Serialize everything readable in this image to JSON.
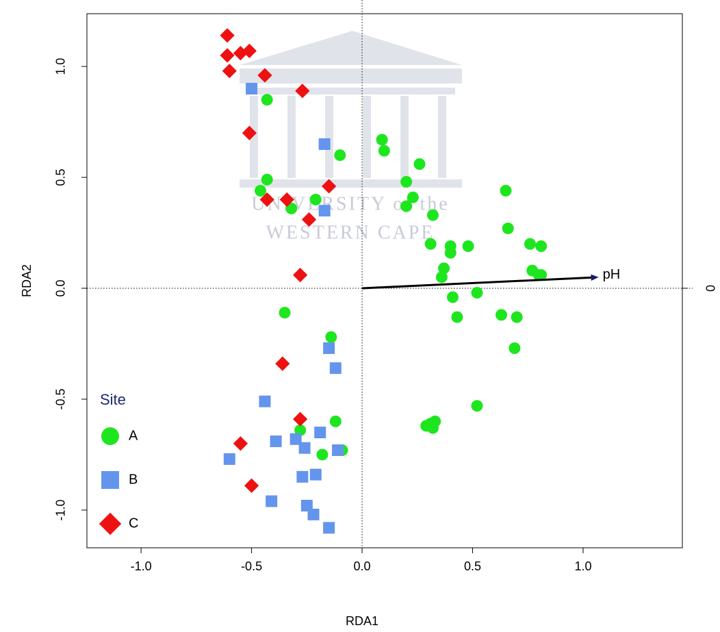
{
  "chart_data": {
    "type": "scatter",
    "x_label": "RDA1",
    "y_label": "RDA2",
    "xlim": [
      -1.245,
      1.449
    ],
    "ylim": [
      -1.17,
      1.238
    ],
    "xticks": [
      {
        "value": -1,
        "label": "-1.0"
      },
      -0.5,
      {
        "value": 0,
        "label": "0.0"
      },
      0.5,
      {
        "value": 1,
        "label": "1.0"
      }
    ],
    "yticks": [
      {
        "value": -1,
        "label": "-1.0"
      },
      -0.5,
      {
        "value": 0,
        "label": "0.0"
      },
      0.5,
      {
        "value": 1,
        "label": "1.0"
      }
    ],
    "y2lim": [
      -1.17,
      1.238
    ],
    "y2ticks": [
      0
    ],
    "zero_lines": true,
    "legend_title": "Site",
    "legend_position": "bottom-left",
    "watermark": [
      "UNIVERSITY of the",
      "WESTERN CAPE"
    ],
    "arrows": [
      {
        "label": "pH",
        "x": 1.07,
        "y": 0.05
      }
    ],
    "series": [
      {
        "name": "A",
        "color": "#1ee61e",
        "marker": "circle",
        "x": [
          -0.43,
          -0.1,
          0.09,
          0.1,
          0.26,
          0.2,
          0.23,
          0.2,
          0.32,
          -0.43,
          -0.46,
          -0.21,
          -0.32,
          0.65,
          0.66,
          0.31,
          0.4,
          0.4,
          0.48,
          0.76,
          0.81,
          0.37,
          0.36,
          0.77,
          0.8,
          0.81,
          0.52,
          0.41,
          0.43,
          0.63,
          0.7,
          0.69,
          -0.35,
          -0.14,
          0.52,
          0.33,
          0.31,
          0.29,
          0.32,
          -0.12,
          -0.28,
          -0.09,
          -0.18
        ],
        "y": [
          0.85,
          0.6,
          0.67,
          0.62,
          0.56,
          0.48,
          0.41,
          0.37,
          0.33,
          0.49,
          0.44,
          0.4,
          0.36,
          0.44,
          0.27,
          0.2,
          0.19,
          0.16,
          0.19,
          0.2,
          0.19,
          0.09,
          0.05,
          0.08,
          0.06,
          0.06,
          -0.02,
          -0.04,
          -0.13,
          -0.12,
          -0.13,
          -0.27,
          -0.11,
          -0.22,
          -0.53,
          -0.6,
          -0.61,
          -0.62,
          -0.63,
          -0.6,
          -0.64,
          -0.73,
          -0.75
        ]
      },
      {
        "name": "B",
        "color": "#6495ed",
        "marker": "square",
        "x": [
          -0.5,
          -0.17,
          -0.17,
          -0.15,
          -0.12,
          -0.44,
          -0.39,
          -0.3,
          -0.26,
          -0.19,
          -0.11,
          -0.6,
          -0.27,
          -0.21,
          -0.41,
          -0.25,
          -0.22,
          -0.15
        ],
        "y": [
          0.9,
          0.65,
          0.35,
          -0.27,
          -0.36,
          -0.51,
          -0.69,
          -0.68,
          -0.72,
          -0.65,
          -0.73,
          -0.77,
          -0.85,
          -0.84,
          -0.96,
          -0.98,
          -1.02,
          -1.08
        ]
      },
      {
        "name": "C",
        "color": "#ee1111",
        "marker": "diamond",
        "x": [
          -0.61,
          -0.61,
          -0.55,
          -0.51,
          -0.6,
          -0.44,
          -0.27,
          -0.51,
          -0.15,
          -0.43,
          -0.34,
          -0.24,
          -0.28,
          -0.36,
          -0.28,
          -0.55,
          -0.5
        ],
        "y": [
          1.14,
          1.05,
          1.06,
          1.07,
          0.98,
          0.96,
          0.89,
          0.7,
          0.46,
          0.4,
          0.4,
          0.31,
          0.06,
          -0.34,
          -0.59,
          -0.7,
          -0.89
        ]
      }
    ]
  }
}
